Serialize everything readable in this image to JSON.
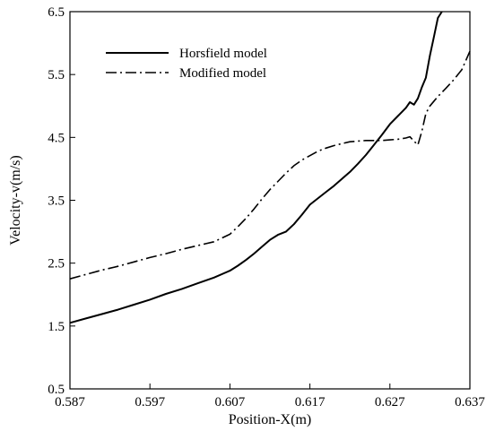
{
  "chart_data": {
    "type": "line",
    "xlabel": "Position-X(m)",
    "ylabel": "Velocity-v(m/s)",
    "xlim": [
      0.587,
      0.637
    ],
    "ylim": [
      0.5,
      6.5
    ],
    "x_ticks": [
      "0.587",
      "0.597",
      "0.607",
      "0.617",
      "0.627",
      "0.637"
    ],
    "y_ticks": [
      "0.5",
      "1.5",
      "2.5",
      "3.5",
      "4.5",
      "5.5",
      "6.5"
    ],
    "grid": false,
    "legend_position": "top-left",
    "series": [
      {
        "name": "Horsfield model",
        "style": "solid",
        "x": [
          0.587,
          0.589,
          0.591,
          0.593,
          0.595,
          0.597,
          0.599,
          0.601,
          0.603,
          0.605,
          0.607,
          0.608,
          0.609,
          0.61,
          0.611,
          0.612,
          0.613,
          0.614,
          0.615,
          0.616,
          0.617,
          0.618,
          0.619,
          0.62,
          0.621,
          0.622,
          0.623,
          0.624,
          0.625,
          0.626,
          0.627,
          0.628,
          0.629,
          0.6295,
          0.63,
          0.6305,
          0.631,
          0.6315,
          0.632,
          0.6325,
          0.633,
          0.6335
        ],
        "y": [
          1.55,
          1.62,
          1.69,
          1.76,
          1.84,
          1.92,
          2.01,
          2.09,
          2.18,
          2.27,
          2.38,
          2.46,
          2.55,
          2.65,
          2.76,
          2.87,
          2.95,
          3.0,
          3.12,
          3.27,
          3.43,
          3.53,
          3.63,
          3.73,
          3.84,
          3.95,
          4.08,
          4.22,
          4.38,
          4.54,
          4.71,
          4.84,
          4.97,
          5.06,
          5.02,
          5.12,
          5.3,
          5.45,
          5.8,
          6.1,
          6.4,
          6.5
        ]
      },
      {
        "name": "Modified model",
        "style": "dashdot",
        "x": [
          0.587,
          0.589,
          0.591,
          0.593,
          0.595,
          0.597,
          0.599,
          0.601,
          0.603,
          0.605,
          0.607,
          0.608,
          0.609,
          0.61,
          0.611,
          0.612,
          0.613,
          0.614,
          0.615,
          0.616,
          0.617,
          0.618,
          0.619,
          0.62,
          0.621,
          0.622,
          0.623,
          0.624,
          0.625,
          0.626,
          0.627,
          0.628,
          0.629,
          0.6295,
          0.63,
          0.6305,
          0.631,
          0.6315,
          0.632,
          0.633,
          0.634,
          0.635,
          0.636,
          0.637
        ],
        "y": [
          2.25,
          2.32,
          2.39,
          2.45,
          2.52,
          2.59,
          2.65,
          2.72,
          2.78,
          2.84,
          2.96,
          3.08,
          3.21,
          3.36,
          3.52,
          3.67,
          3.8,
          3.93,
          4.05,
          4.14,
          4.21,
          4.28,
          4.33,
          4.37,
          4.4,
          4.43,
          4.44,
          4.45,
          4.45,
          4.45,
          4.46,
          4.47,
          4.49,
          4.51,
          4.44,
          4.38,
          4.6,
          4.88,
          5.0,
          5.15,
          5.28,
          5.42,
          5.58,
          5.87
        ]
      }
    ]
  }
}
